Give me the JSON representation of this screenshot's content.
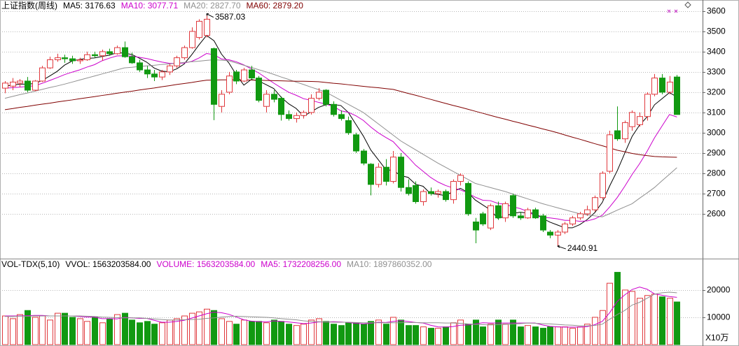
{
  "chart_data": [
    {
      "type": "candlestick",
      "title": "上证指数(周线)",
      "up_color": "#e0383c",
      "down_color": "#119911",
      "open": [
        3220,
        3230,
        3245,
        3255,
        3210,
        3255,
        3320,
        3360,
        3370,
        3365,
        3355,
        3360,
        3385,
        3380,
        3400,
        3390,
        3420,
        3375,
        3345,
        3310,
        3290,
        3275,
        3300,
        3330,
        3370,
        3420,
        3470,
        3480,
        3415,
        3130,
        3200,
        3300,
        3255,
        3310,
        3270,
        3130,
        3190,
        3170,
        3090,
        3070,
        3085,
        3100,
        3170,
        3210,
        3140,
        3090,
        3060,
        2990,
        2910,
        2845,
        2745,
        2830,
        2760,
        2880,
        2730,
        2740,
        2660,
        2710,
        2700,
        2710,
        2670,
        2760,
        2750,
        2560,
        2600,
        2530,
        2640,
        2580,
        2690,
        2590,
        2580,
        2620,
        2590,
        2510,
        2495,
        2510,
        2550,
        2580,
        2600,
        2620,
        2680,
        2810,
        3010,
        2970,
        3030,
        3040,
        3080,
        3190,
        3270,
        3200,
        3275
      ],
      "high": [
        3255,
        3270,
        3265,
        3275,
        3260,
        3330,
        3375,
        3390,
        3385,
        3380,
        3370,
        3400,
        3400,
        3410,
        3415,
        3430,
        3450,
        3395,
        3360,
        3330,
        3310,
        3310,
        3340,
        3380,
        3430,
        3520,
        3560,
        3587.03,
        3420,
        3210,
        3300,
        3310,
        3320,
        3330,
        3280,
        3210,
        3210,
        3180,
        3110,
        3100,
        3110,
        3190,
        3220,
        3215,
        3155,
        3110,
        3080,
        3000,
        2920,
        2850,
        2850,
        2870,
        2910,
        2900,
        2770,
        2760,
        2720,
        2730,
        2720,
        2720,
        2770,
        2800,
        2760,
        2580,
        2610,
        2650,
        2660,
        2660,
        2700,
        2610,
        2630,
        2630,
        2600,
        2520,
        2520,
        2560,
        2590,
        2610,
        2640,
        2690,
        2810,
        3010,
        3130,
        3060,
        3110,
        3100,
        3200,
        3290,
        3290,
        3280,
        3285
      ],
      "low": [
        3195,
        3210,
        3225,
        3200,
        3205,
        3250,
        3315,
        3350,
        3345,
        3340,
        3340,
        3355,
        3370,
        3355,
        3380,
        3385,
        3370,
        3340,
        3300,
        3270,
        3255,
        3260,
        3285,
        3320,
        3360,
        3415,
        3460,
        3470,
        3062,
        3100,
        3190,
        3240,
        3250,
        3260,
        3150,
        3100,
        3150,
        3060,
        3060,
        3050,
        3070,
        3090,
        3160,
        3130,
        3080,
        3060,
        2990,
        2900,
        2840,
        2691,
        2730,
        2740,
        2750,
        2710,
        2690,
        2650,
        2640,
        2690,
        2680,
        2660,
        2650,
        2740,
        2590,
        2455,
        2540,
        2520,
        2570,
        2560,
        2580,
        2570,
        2575,
        2575,
        2510,
        2480,
        2440.91,
        2500,
        2540,
        2570,
        2590,
        2610,
        2670,
        2800,
        2960,
        2950,
        3010,
        3030,
        3060,
        3180,
        3190,
        3190,
        3090
      ],
      "close": [
        3245,
        3250,
        3255,
        3210,
        3255,
        3320,
        3360,
        3370,
        3365,
        3355,
        3360,
        3385,
        3380,
        3400,
        3390,
        3420,
        3375,
        3345,
        3310,
        3290,
        3275,
        3300,
        3330,
        3370,
        3420,
        3500,
        3550,
        3560,
        3140,
        3190,
        3280,
        3255,
        3310,
        3270,
        3160,
        3190,
        3165,
        3090,
        3070,
        3085,
        3100,
        3170,
        3200,
        3140,
        3090,
        3070,
        3000,
        2910,
        2850,
        2745,
        2830,
        2760,
        2880,
        2730,
        2700,
        2660,
        2710,
        2700,
        2710,
        2670,
        2760,
        2790,
        2600,
        2520,
        2550,
        2640,
        2580,
        2650,
        2590,
        2580,
        2620,
        2580,
        2520,
        2495,
        2510,
        2550,
        2580,
        2600,
        2620,
        2680,
        2800,
        2990,
        2970,
        3050,
        3100,
        3080,
        3190,
        3270,
        3200,
        3250,
        3090
      ],
      "series": [
        {
          "name": "MA5: 3176.63",
          "color": "#000000",
          "values": [
            3230,
            3235,
            3240,
            3240,
            3243,
            3258,
            3280,
            3303,
            3334,
            3354,
            3362,
            3367,
            3369,
            3376,
            3383,
            3395,
            3393,
            3386,
            3368,
            3348,
            3319,
            3304,
            3301,
            3315,
            3339,
            3384,
            3434,
            3480,
            3454,
            3388,
            3344,
            3285,
            3235,
            3263,
            3255,
            3237,
            3218,
            3175,
            3143,
            3120,
            3082,
            3103,
            3125,
            3139,
            3140,
            3134,
            3100,
            3042,
            2984,
            2915,
            2867,
            2819,
            2813,
            2789,
            2780,
            2746,
            2736,
            2700,
            2696,
            2690,
            2710,
            2726,
            2706,
            2668,
            2644,
            2620,
            2578,
            2588,
            2602,
            2608,
            2604,
            2604,
            2578,
            2559,
            2545,
            2531,
            2531,
            2547,
            2572,
            2606,
            2656,
            2738,
            2812,
            2898,
            2982,
            3038,
            3078,
            3138,
            3168,
            3198,
            3176.63
          ]
        },
        {
          "name": "MA10: 3077.71",
          "color": "#cc00cc",
          "values": [
            3220,
            3222,
            3225,
            3228,
            3232,
            3244,
            3258,
            3272,
            3287,
            3299,
            3310,
            3324,
            3336,
            3355,
            3368,
            3379,
            3380,
            3378,
            3372,
            3366,
            3357,
            3349,
            3343,
            3342,
            3344,
            3352,
            3369,
            3391,
            3385,
            3364,
            3360,
            3350,
            3335,
            3315,
            3295,
            3270,
            3245,
            3222,
            3200,
            3185,
            3168,
            3160,
            3150,
            3141,
            3130,
            3108,
            3101,
            3084,
            3061,
            3028,
            3000,
            2977,
            2956,
            2916,
            2880,
            2840,
            2810,
            2780,
            2757,
            2740,
            2728,
            2718,
            2703,
            2682,
            2667,
            2665,
            2652,
            2647,
            2635,
            2626,
            2612,
            2591,
            2583,
            2580,
            2575,
            2568,
            2568,
            2563,
            2565,
            2575,
            2593,
            2634,
            2680,
            2735,
            2794,
            2847,
            2908,
            2975,
            3033,
            3090,
            3077.71
          ]
        },
        {
          "name": "MA20: 2827.70",
          "color": "#909090",
          "values": [
            3170,
            3179,
            3188,
            3196,
            3205,
            3214,
            3223,
            3231,
            3240,
            3250,
            3260,
            3270,
            3280,
            3290,
            3300,
            3310,
            3320,
            3323,
            3327,
            3330,
            3333,
            3337,
            3340,
            3343,
            3347,
            3350,
            3353,
            3357,
            3360,
            3358,
            3355,
            3344,
            3333,
            3322,
            3311,
            3300,
            3288,
            3275,
            3263,
            3250,
            3238,
            3225,
            3213,
            3200,
            3180,
            3160,
            3140,
            3120,
            3100,
            3072,
            3044,
            3016,
            2988,
            2960,
            2938,
            2916,
            2894,
            2872,
            2850,
            2830,
            2810,
            2790,
            2770,
            2750,
            2740,
            2730,
            2720,
            2710,
            2698,
            2686,
            2674,
            2662,
            2650,
            2640,
            2630,
            2620,
            2610,
            2600,
            2595,
            2590,
            2585,
            2601,
            2618,
            2634,
            2650,
            2677,
            2703,
            2730,
            2763,
            2795,
            2827.7
          ]
        },
        {
          "name": "MA60: 2879.20",
          "color": "#800000",
          "values": [
            3114,
            3119,
            3125,
            3130,
            3136,
            3141,
            3146,
            3152,
            3157,
            3162,
            3168,
            3173,
            3178,
            3184,
            3189,
            3195,
            3200,
            3205,
            3211,
            3216,
            3221,
            3227,
            3232,
            3238,
            3243,
            3248,
            3254,
            3259,
            3260,
            3261,
            3261,
            3261,
            3260,
            3260,
            3259,
            3258,
            3257,
            3256,
            3255,
            3254,
            3254,
            3253,
            3252,
            3248,
            3244,
            3241,
            3237,
            3233,
            3229,
            3225,
            3222,
            3218,
            3214,
            3204,
            3194,
            3185,
            3175,
            3165,
            3155,
            3145,
            3135,
            3126,
            3116,
            3106,
            3096,
            3086,
            3076,
            3067,
            3057,
            3048,
            3038,
            3029,
            3019,
            3010,
            3000,
            2989,
            2978,
            2968,
            2957,
            2946,
            2936,
            2925,
            2914,
            2906,
            2898,
            2892,
            2887,
            2883,
            2881,
            2880,
            2879.2
          ]
        }
      ],
      "ylim": [
        2379,
        3648
      ],
      "yticks": [
        2600,
        2700,
        2800,
        2900,
        3000,
        3100,
        3200,
        3300,
        3400,
        3500,
        3600
      ],
      "grid": true
    },
    {
      "type": "bar",
      "title": "VOL-TDX(5,10)",
      "header": "VVOL: 1563203584.00",
      "unit_label": "X10万",
      "series": [
        {
          "name": "VOLUME: 1563203584.00",
          "color": "#cc00cc",
          "values": [
            10500,
            9500,
            11000,
            12500,
            10000,
            10500,
            9000,
            11500,
            11500,
            10000,
            9500,
            8500,
            10000,
            8000,
            9500,
            11000,
            11500,
            9000,
            8000,
            8500,
            7500,
            8000,
            9000,
            9500,
            10500,
            11500,
            12000,
            13000,
            12500,
            9500,
            8500,
            7500,
            9000,
            8500,
            8500,
            8000,
            9000,
            8500,
            7500,
            7000,
            7500,
            9000,
            9500,
            8500,
            7500,
            7000,
            8000,
            8000,
            7500,
            8500,
            9000,
            7500,
            10000,
            9000,
            7000,
            7000,
            6500,
            6000,
            6000,
            6500,
            8000,
            9000,
            7500,
            9000,
            6500,
            7500,
            9000,
            7500,
            9000,
            6500,
            7000,
            6500,
            6000,
            6500,
            6500,
            6500,
            6000,
            6500,
            7500,
            10000,
            12500,
            22500,
            26500,
            20000,
            19500,
            17000,
            18000,
            18500,
            17500,
            17000,
            15632.03584
          ]
        },
        {
          "name": "MA5: 1732208256.00",
          "color": "#cc00cc",
          "values": [
            10500,
            10500,
            10500,
            10600,
            10700,
            10700,
            10500,
            10500,
            10500,
            10500,
            10300,
            10100,
            10100,
            9500,
            9500,
            9400,
            10000,
            9800,
            9600,
            9600,
            8900,
            8200,
            8200,
            8500,
            8900,
            9700,
            10500,
            11300,
            11900,
            11700,
            11100,
            10100,
            9100,
            8600,
            8400,
            8300,
            8700,
            8500,
            8300,
            8000,
            7700,
            7900,
            8300,
            8300,
            8400,
            8300,
            8100,
            7800,
            7600,
            7800,
            8200,
            8100,
            8500,
            8800,
            8500,
            8100,
            7900,
            7100,
            6500,
            6400,
            6600,
            7100,
            7200,
            7600,
            8000,
            7900,
            7900,
            7900,
            7900,
            7900,
            7900,
            7900,
            7200,
            6700,
            6500,
            6400,
            6400,
            6400,
            6600,
            7300,
            8500,
            11700,
            15800,
            18200,
            20200,
            21100,
            20300,
            18600,
            18100,
            17600,
            17322.08256
          ]
        },
        {
          "name": "MA10: 1897860352.00",
          "color": "#909090",
          "values": [
            10300,
            10300,
            10400,
            10400,
            10500,
            10500,
            10500,
            10500,
            10500,
            10500,
            10500,
            10400,
            10300,
            10100,
            10000,
            9900,
            9800,
            9800,
            9800,
            9600,
            9400,
            9200,
            9000,
            9000,
            9100,
            9200,
            9300,
            9600,
            9800,
            10100,
            10300,
            10400,
            10300,
            10200,
            10100,
            10000,
            9800,
            9500,
            9300,
            9100,
            8700,
            8500,
            8400,
            8300,
            8200,
            8200,
            8200,
            8100,
            8000,
            8000,
            8000,
            8000,
            8000,
            8000,
            8100,
            8100,
            8000,
            8000,
            8000,
            7900,
            7900,
            7800,
            7600,
            7400,
            7300,
            7200,
            7300,
            7400,
            7500,
            7700,
            7900,
            7800,
            7700,
            7600,
            7400,
            7200,
            7100,
            6900,
            6900,
            7000,
            7500,
            9300,
            11000,
            12500,
            14500,
            15500,
            17000,
            18500,
            19000,
            19200,
            18978.60352
          ]
        }
      ],
      "ylim": [
        0,
        31000
      ],
      "yticks": [
        10000,
        20000
      ],
      "grid": true
    }
  ]
}
